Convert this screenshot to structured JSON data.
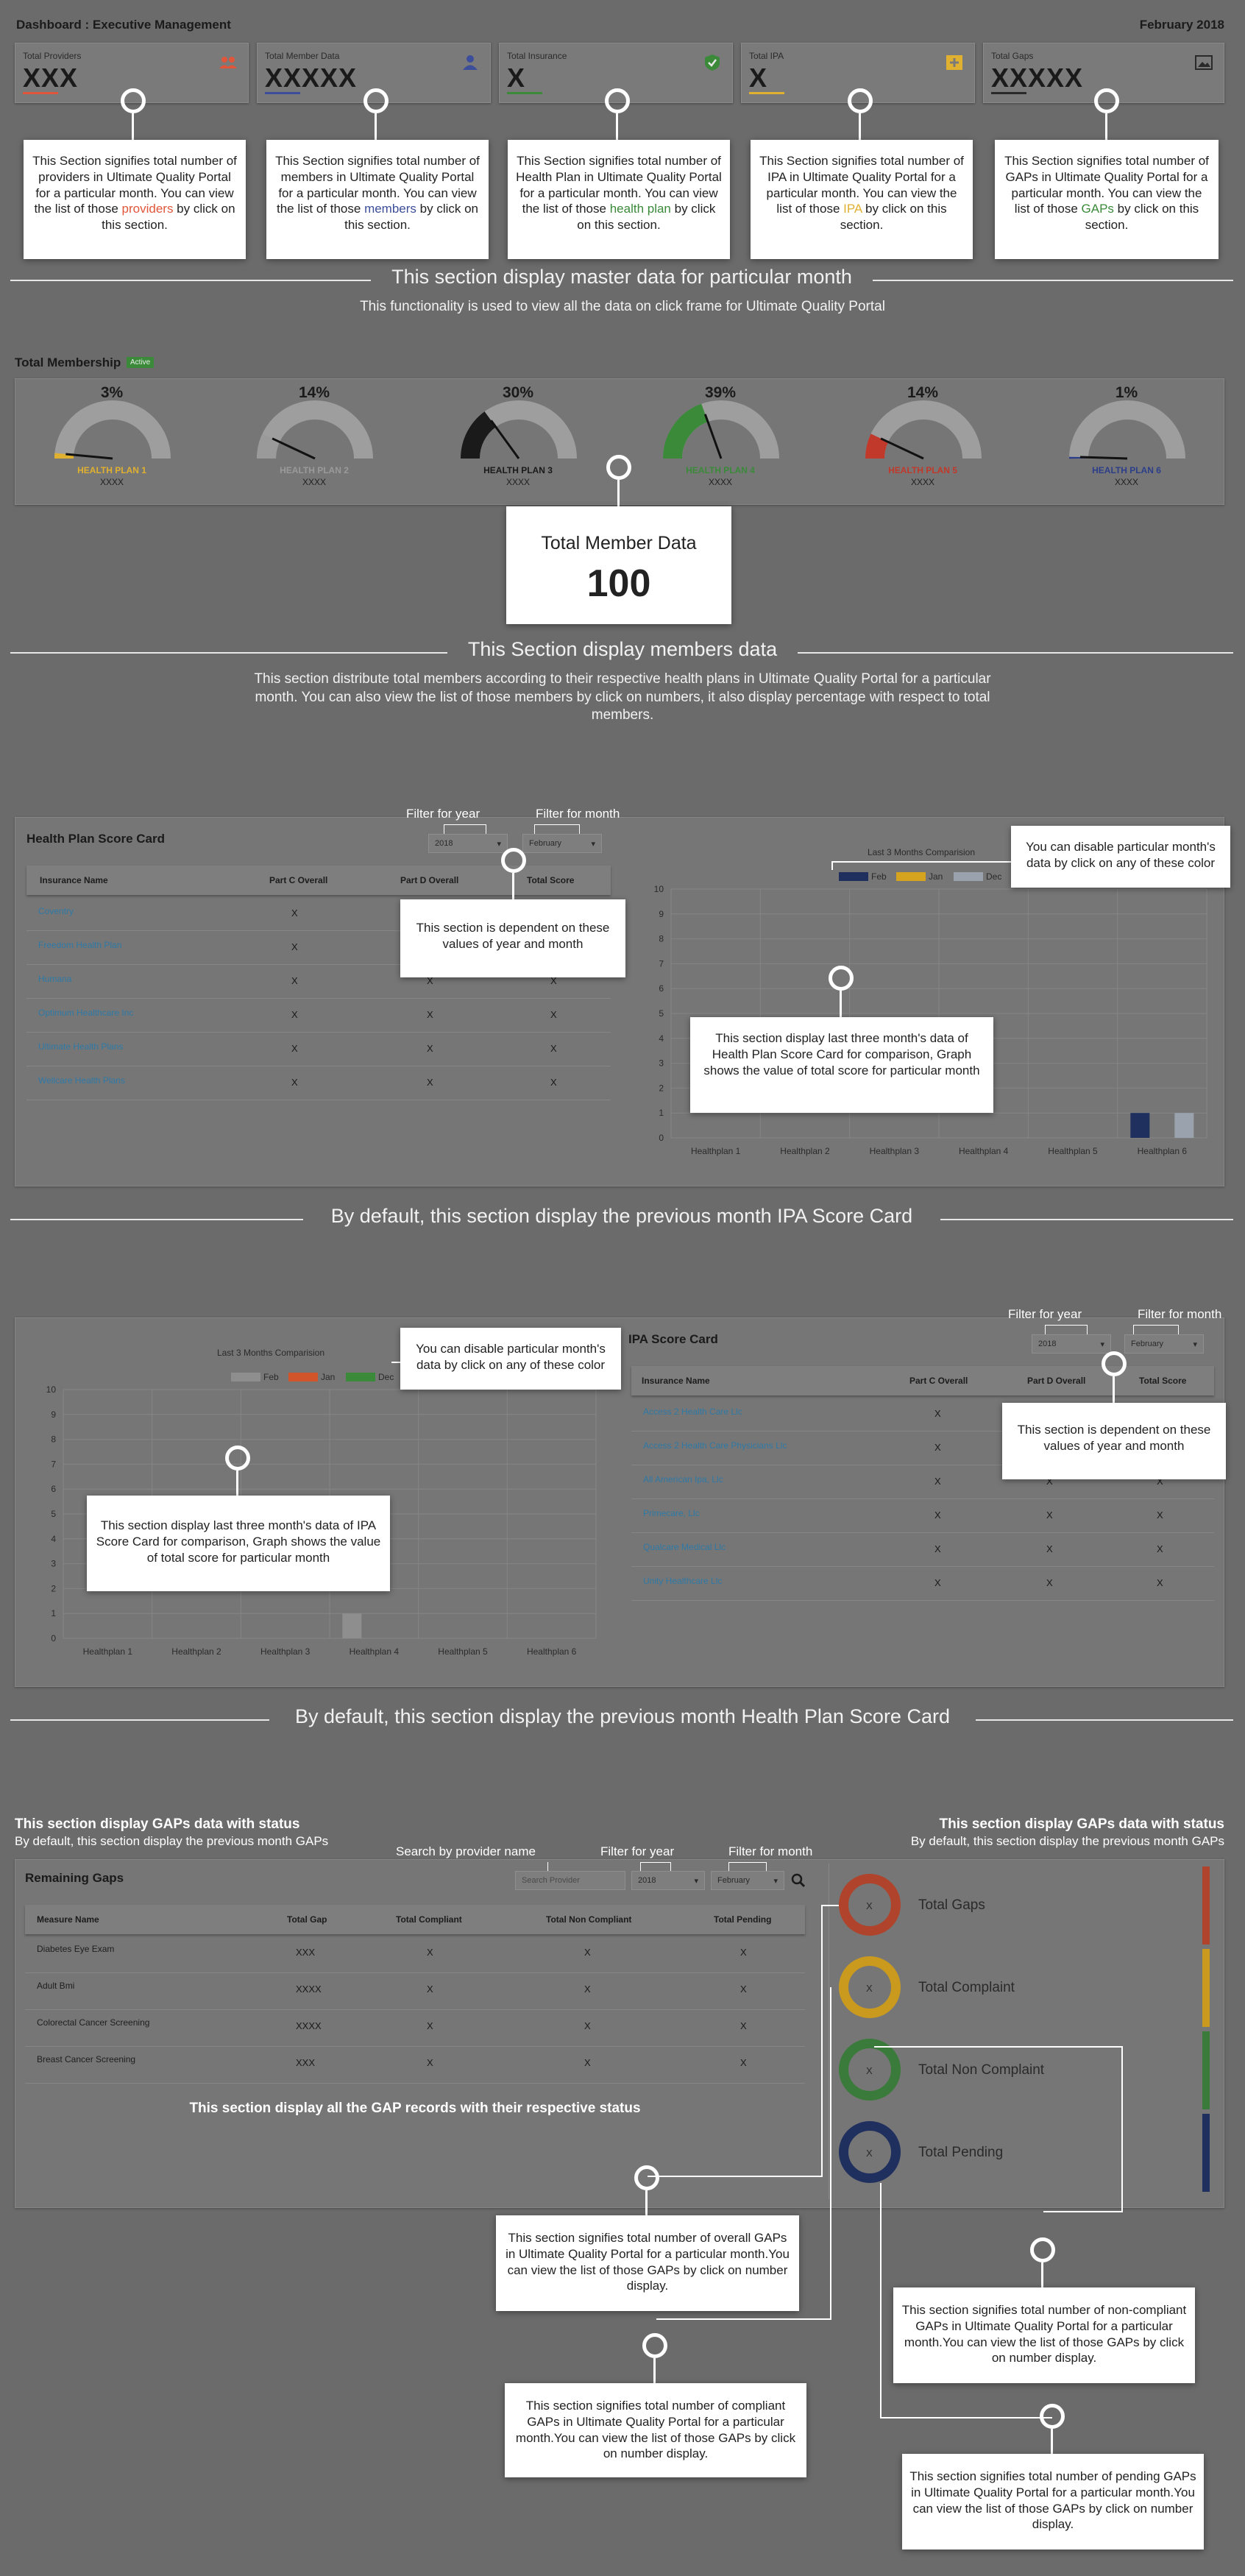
{
  "header": {
    "title": "Dashboard : Executive Management",
    "date": "February 2018"
  },
  "kpis": [
    {
      "label": "Total Providers",
      "value": "XXX",
      "accent": "#e0563a",
      "icon": "people-icon"
    },
    {
      "label": "Total Member Data",
      "value": "XXXXX",
      "accent": "#3c4e9a",
      "icon": "person-icon"
    },
    {
      "label": "Total Insurance",
      "value": "X",
      "accent": "#3a8a3a",
      "icon": "shield-icon"
    },
    {
      "label": "Total IPA",
      "value": "X",
      "accent": "#e0b030",
      "icon": "plus-box-icon"
    },
    {
      "label": "Total Gaps",
      "value": "XXXXX",
      "accent": "#2a2a2a",
      "icon": "image-icon"
    }
  ],
  "kpi_callouts": [
    {
      "pre": "This Section signifies total number of providers in Ultimate Quality Portal for a particular month. You can view the list of those ",
      "word": "providers",
      "post": " by click on this section.",
      "color": "#e0563a"
    },
    {
      "pre": "This Section signifies total number of members in Ultimate Quality Portal for a particular month. You can view the list of those ",
      "word": "members",
      "post": " by click on this section.",
      "color": "#3c4e9a"
    },
    {
      "pre": "This Section signifies total number of Health Plan in Ultimate Quality Portal for a particular month. You can view the list of those ",
      "word": "health plan",
      "post": " by click on this section.",
      "color": "#3a8a3a"
    },
    {
      "pre": "This Section signifies total number of IPA in Ultimate Quality Portal for a particular month. You can view the list of those ",
      "word": "IPA",
      "post": " by click on this section.",
      "color": "#e0b030"
    },
    {
      "pre": "This Section signifies total number of GAPs in Ultimate Quality Portal for a particular month. You can view the list of those ",
      "word": "GAPs",
      "post": " by click on this section.",
      "color": "#3a8a3a"
    }
  ],
  "master_section": {
    "title": "This section display master data for particular month",
    "sub": "This functionality is used to view all the data on click frame for Ultimate Quality Portal"
  },
  "membership": {
    "title": "Total Membership",
    "badge": "Active",
    "plans": [
      {
        "pct": "3%",
        "value": 3,
        "name": "HEALTH PLAN 1",
        "sub": "XXXX",
        "color": "#e0b030"
      },
      {
        "pct": "14%",
        "value": 14,
        "name": "HEALTH PLAN 2",
        "sub": "XXXX",
        "color": "#9a9a9a"
      },
      {
        "pct": "30%",
        "value": 30,
        "name": "HEALTH PLAN 3",
        "sub": "XXXX",
        "color": "#1a1a1a"
      },
      {
        "pct": "39%",
        "value": 39,
        "name": "HEALTH PLAN 4",
        "sub": "XXXX",
        "color": "#3a8a3a"
      },
      {
        "pct": "14%",
        "value": 14,
        "name": "HEALTH PLAN 5",
        "sub": "XXXX",
        "color": "#c0392b"
      },
      {
        "pct": "1%",
        "value": 1,
        "name": "HEALTH PLAN 6",
        "sub": "XXXX",
        "color": "#2c3e8a"
      }
    ]
  },
  "member_callout": {
    "title": "Total Member Data",
    "value": "100"
  },
  "members_section": {
    "title": "This Section display members data",
    "sub": "This section distribute total members according to their respective health plans in Ultimate Quality Portal for a particular month. You can also view the list of those members by click on numbers, it also display percentage with respect to total members."
  },
  "filters": {
    "year_label": "Filter for year",
    "month_label": "Filter for month",
    "year": "2018",
    "month": "February",
    "provider_label": "Search by provider name",
    "provider_placeholder": "Search Provider"
  },
  "hp_scorecard": {
    "title": "Health Plan Score Card",
    "columns": [
      "Insurance Name",
      "Part C Overall",
      "Part D Overall",
      "Total Score"
    ],
    "rows": [
      {
        "name": "Coventry",
        "c": "X",
        "d": "X",
        "t": "X"
      },
      {
        "name": "Freedom Health Plan",
        "c": "X",
        "d": "X",
        "t": "X"
      },
      {
        "name": "Humana",
        "c": "X",
        "d": "X",
        "t": "X"
      },
      {
        "name": "Optimum Healthcare Inc",
        "c": "X",
        "d": "X",
        "t": "X"
      },
      {
        "name": "Ultimate Health Plans",
        "c": "X",
        "d": "X",
        "t": "X"
      },
      {
        "name": "Wellcare Health Plans",
        "c": "X",
        "d": "X",
        "t": "X"
      }
    ]
  },
  "callouts": {
    "dependent": "This section is dependent on these values of year and month",
    "disable": "You can disable particular month's data by click on any of these color",
    "hp_chart": "This section display last three month's data of Health Plan Score Card for comparison, Graph shows the value of total score for particular month",
    "ipa_chart": "This section display last three month's data of IPA Score Card for comparison, Graph shows the value of total score for particular month"
  },
  "hp_chart": {
    "type": "bar",
    "title": "Last 3 Months Comparision",
    "categories": [
      "Healthplan 1",
      "Healthplan 2",
      "Healthplan 3",
      "Healthplan 4",
      "Healthplan 5",
      "Healthplan 6"
    ],
    "series": [
      {
        "name": "Feb",
        "color": "#1f2f5e",
        "values": [
          0,
          0,
          0,
          0,
          0,
          1
        ]
      },
      {
        "name": "Jan",
        "color": "#d6a31e",
        "values": [
          0,
          0,
          0,
          0,
          0,
          0
        ]
      },
      {
        "name": "Dec",
        "color": "#9aa3ad",
        "values": [
          0,
          0,
          0,
          0,
          0,
          1
        ]
      }
    ],
    "ylim": [
      0,
      10
    ],
    "yticks": [
      "0",
      "1",
      "2",
      "3",
      "4",
      "5",
      "6",
      "7",
      "8",
      "9",
      "10"
    ]
  },
  "ipa_default": "By default, this section display the previous month IPA Score Card",
  "ipa_chart": {
    "type": "bar",
    "title": "Last 3 Months Comparision",
    "categories": [
      "Healthplan 1",
      "Healthplan 2",
      "Healthplan 3",
      "Healthplan 4",
      "Healthplan 5",
      "Healthplan 6"
    ],
    "series": [
      {
        "name": "Feb",
        "color": "#8e8e8e",
        "values": [
          0,
          0,
          0,
          1,
          0,
          0
        ]
      },
      {
        "name": "Jan",
        "color": "#d2542a",
        "values": [
          0,
          0,
          0,
          0,
          0,
          0
        ]
      },
      {
        "name": "Dec",
        "color": "#3a8a3a",
        "values": [
          0,
          0,
          0,
          0,
          0,
          0
        ]
      }
    ],
    "ylim": [
      0,
      10
    ],
    "yticks": [
      "0",
      "1",
      "2",
      "3",
      "4",
      "5",
      "6",
      "7",
      "8",
      "9",
      "10"
    ]
  },
  "ipa_scorecard": {
    "title": "IPA Score Card",
    "columns": [
      "Insurance Name",
      "Part C Overall",
      "Part D Overall",
      "Total Score"
    ],
    "rows": [
      {
        "name": "Access 2 Health Care Llc",
        "c": "X",
        "d": "X",
        "t": "X"
      },
      {
        "name": "Access 2 Health Care Physicians Llc",
        "c": "X",
        "d": "X",
        "t": "X"
      },
      {
        "name": "All American Ipa, Llc",
        "c": "X",
        "d": "X",
        "t": "X"
      },
      {
        "name": "Primecare, Llc",
        "c": "X",
        "d": "X",
        "t": "X"
      },
      {
        "name": "Qualcare Medical Llc",
        "c": "X",
        "d": "X",
        "t": "X"
      },
      {
        "name": "Unity Healthcare Llc",
        "c": "X",
        "d": "X",
        "t": "X"
      }
    ]
  },
  "hp_default": "By default, this section display the previous month Health Plan Score Card",
  "gaps_heading": {
    "title": "This section display GAPs data with status",
    "sub": "By default, this section display the previous month GAPs"
  },
  "remaining_gaps": {
    "title": "Remaining Gaps",
    "columns": [
      "Measure Name",
      "Total Gap",
      "Total Compliant",
      "Total Non Compliant",
      "Total Pending"
    ],
    "rows": [
      {
        "name": "Diabetes Eye Exam",
        "gap": "XXX",
        "c": "X",
        "nc": "X",
        "p": "X"
      },
      {
        "name": "Adult Bmi",
        "gap": "XXXX",
        "c": "X",
        "nc": "X",
        "p": "X"
      },
      {
        "name": "Colorectal Cancer Screening",
        "gap": "XXXX",
        "c": "X",
        "nc": "X",
        "p": "X"
      },
      {
        "name": "Breast Cancer Screening",
        "gap": "XXX",
        "c": "X",
        "nc": "X",
        "p": "X"
      }
    ],
    "note": "This section display all the GAP records with their respective status"
  },
  "gap_status": [
    {
      "label": "Total Gaps",
      "value": "X",
      "color": "#b0432c"
    },
    {
      "label": "Total Complaint",
      "value": "X",
      "color": "#c99a1e"
    },
    {
      "label": "Total Non Complaint",
      "value": "X",
      "color": "#3a7a3a"
    },
    {
      "label": "Total Pending",
      "value": "X",
      "color": "#1f2f5e"
    }
  ],
  "gap_callouts": {
    "overall": "This section signifies total number of overall GAPs in Ultimate Quality Portal for a particular month.You can view the list of those GAPs by click on number display.",
    "compliant": "This section signifies total number of compliant GAPs in Ultimate Quality Portal for a particular month.You can view the list of those GAPs by click on number display.",
    "noncompliant": "This section signifies total number of non-compliant GAPs in Ultimate Quality Portal for a particular month.You can view the list of those GAPs by click on number display.",
    "pending": "This section signifies total number of pending GAPs in Ultimate Quality Portal for a particular month.You can view the list of those GAPs by click on number display."
  }
}
